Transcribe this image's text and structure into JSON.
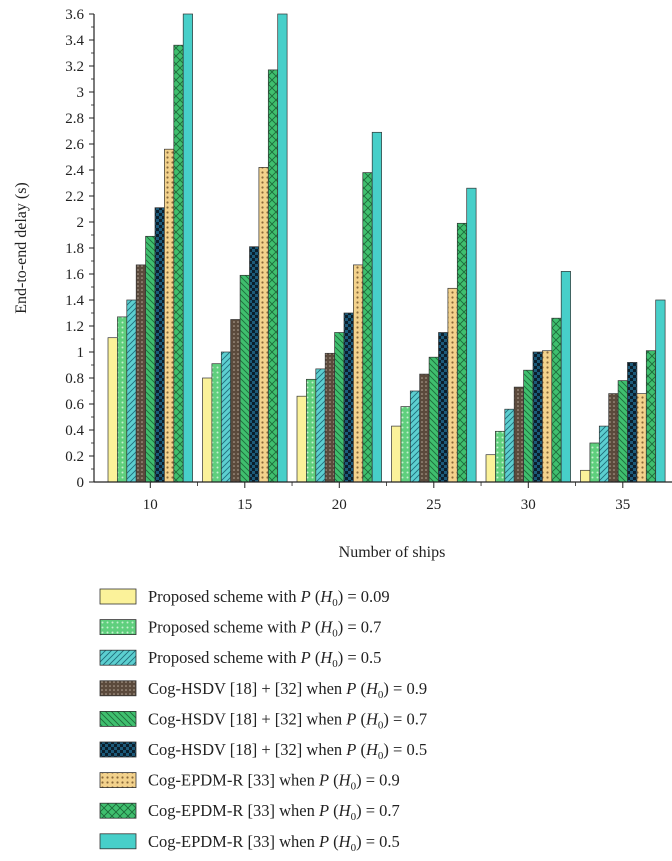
{
  "chart_data": {
    "type": "bar",
    "xlabel": "Number of ships",
    "ylabel": "End-to-end delay (s)",
    "categories": [
      "10",
      "15",
      "20",
      "25",
      "30",
      "35"
    ],
    "ylim": [
      0,
      3.6
    ],
    "yticks": [
      "0",
      "0.2",
      "0.4",
      "0.6",
      "0.8",
      "1",
      "1.2",
      "1.4",
      "1.6",
      "1.8",
      "2",
      "2.2",
      "2.4",
      "2.6",
      "2.8",
      "3",
      "3.2",
      "3.4",
      "3.6"
    ],
    "series": [
      {
        "legend": {
          "prefix": "Proposed scheme with ",
          "var": "P",
          "sub": "0",
          "suffix": " = 0.09"
        },
        "values": [
          1.11,
          0.8,
          0.66,
          0.43,
          0.21,
          0.09
        ],
        "fill": "#fbf29a",
        "pattern": "none"
      },
      {
        "legend": {
          "prefix": "Proposed scheme with ",
          "var": "P",
          "sub": "0",
          "suffix": " = 0.7"
        },
        "values": [
          1.27,
          0.91,
          0.79,
          0.58,
          0.39,
          0.3
        ],
        "fill": "#5fcf7d",
        "pattern": "dots"
      },
      {
        "legend": {
          "prefix": "Proposed scheme with ",
          "var": "P",
          "sub": "0",
          "suffix": " = 0.5"
        },
        "values": [
          1.4,
          1.0,
          0.87,
          0.7,
          0.56,
          0.43
        ],
        "fill": "#5ccfd0",
        "pattern": "diag"
      },
      {
        "legend": {
          "prefix": "Cog-HSDV [18] + [32] when ",
          "var": "P",
          "sub": "0",
          "suffix": " = 0.9"
        },
        "values": [
          1.67,
          1.25,
          0.99,
          0.83,
          0.73,
          0.68
        ],
        "fill": "#5b4a3c",
        "pattern": "dark-dots"
      },
      {
        "legend": {
          "prefix": "Cog-HSDV [18] + [32] when ",
          "var": "P",
          "sub": "0",
          "suffix": " = 0.7"
        },
        "values": [
          1.89,
          1.59,
          1.15,
          0.96,
          0.86,
          0.78
        ],
        "fill": "#3fbf6e",
        "pattern": "diag-back"
      },
      {
        "legend": {
          "prefix": "Cog-HSDV [18] + [32] when ",
          "var": "P",
          "sub": "0",
          "suffix": " = 0.5"
        },
        "values": [
          2.11,
          1.81,
          1.3,
          1.15,
          1.0,
          0.92
        ],
        "fill": "#1c5a7a",
        "pattern": "checker"
      },
      {
        "legend": {
          "prefix": "Cog-EPDM-R [33] when ",
          "var": "P",
          "sub": "0",
          "suffix": " = 0.9"
        },
        "values": [
          2.56,
          2.42,
          1.67,
          1.49,
          1.01,
          0.68
        ],
        "fill": "#f3d28c",
        "pattern": "brown-dots"
      },
      {
        "legend": {
          "prefix": "Cog-EPDM-R [33] when ",
          "var": "P",
          "sub": "0",
          "suffix": " = 0.7"
        },
        "values": [
          3.36,
          3.17,
          2.38,
          1.99,
          1.26,
          1.01
        ],
        "fill": "#3fbf6e",
        "pattern": "cross"
      },
      {
        "legend": {
          "prefix": "Cog-EPDM-R [33] when ",
          "var": "P",
          "sub": "0",
          "suffix": " = 0.5"
        },
        "values": [
          3.6,
          3.6,
          2.69,
          2.26,
          1.62,
          1.4
        ],
        "fill": "#47cfc9",
        "pattern": "none"
      }
    ]
  }
}
